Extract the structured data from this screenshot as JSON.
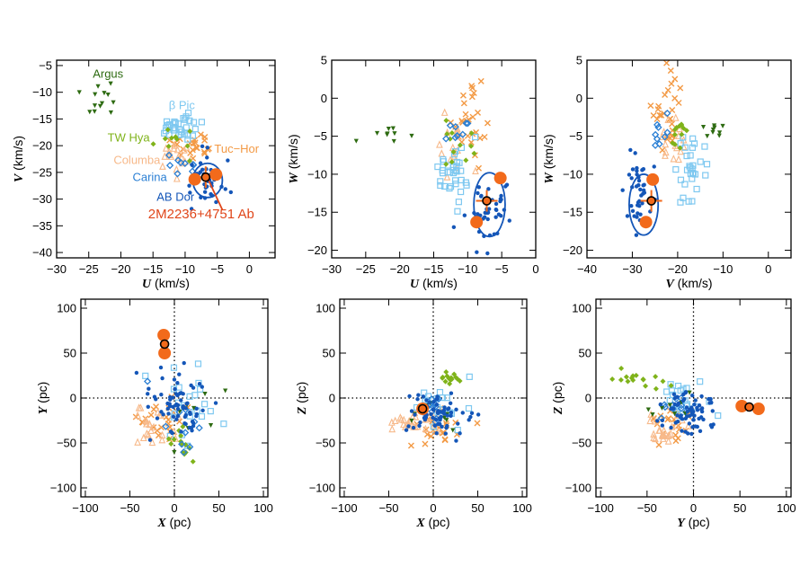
{
  "colors": {
    "argus": "#2e6b12",
    "bpic": "#7ec8f0",
    "twhya": "#7fb31a",
    "columba": "#f7b98a",
    "carina": "#2a7fd4",
    "tuchor": "#f39a45",
    "abdor": "#1456b8",
    "target": "#f26a1b",
    "target_label": "#e0461a"
  },
  "group_labels": {
    "argus": "Argus",
    "bpic": "β Pic",
    "twhya": "TW Hya",
    "columba": "Columba",
    "carina": "Carina",
    "tuchor": "Tuc−Hor",
    "abdor": "AB Dor",
    "target": "2M2236+4751 Ab"
  },
  "chart_data": [
    {
      "type": "scatter",
      "xlabel_var": "U",
      "xlabel_unit": " (km/s)",
      "ylabel_var": "V",
      "ylabel_unit": " (km/s)",
      "xlim": [
        -30,
        4
      ],
      "ylim": [
        -41,
        -4
      ],
      "xticks": [
        -30,
        -25,
        -20,
        -15,
        -10,
        -5,
        0
      ],
      "yticks": [
        -40,
        -35,
        -30,
        -25,
        -20,
        -15,
        -10,
        -5
      ],
      "target": {
        "value": [
          -6.8,
          -25.9
        ],
        "errors": [
          [
            -8.5,
            -26.3
          ],
          [
            -5.2,
            -25.4
          ]
        ]
      },
      "ellipse": {
        "center": [
          -6.5,
          -26.5
        ],
        "radii": [
          2.3,
          3.2
        ]
      },
      "has_labels": true
    },
    {
      "type": "scatter",
      "xlabel_var": "U",
      "xlabel_unit": " (km/s)",
      "ylabel_var": "W",
      "ylabel_unit": " (km/s)",
      "xlim": [
        -30,
        0
      ],
      "ylim": [
        -21,
        5
      ],
      "xticks": [
        -30,
        -25,
        -20,
        -15,
        -10,
        -5,
        0
      ],
      "yticks": [
        -20,
        -15,
        -10,
        -5,
        0,
        5
      ],
      "target": {
        "value": [
          -7.2,
          -13.5
        ],
        "errors": [
          [
            -8.7,
            -16.3
          ],
          [
            -5.2,
            -10.5
          ]
        ]
      },
      "ellipse": {
        "center": [
          -6.8,
          -14.0
        ],
        "radii": [
          2.3,
          4.2
        ]
      }
    },
    {
      "type": "scatter",
      "xlabel_var": "V",
      "xlabel_unit": " (km/s)",
      "ylabel_var": "W",
      "ylabel_unit": " (km/s)",
      "xlim": [
        -40,
        5
      ],
      "ylim": [
        -21,
        5
      ],
      "xticks": [
        -40,
        -30,
        -20,
        -10,
        0
      ],
      "yticks": [
        -20,
        -15,
        -10,
        -5,
        0,
        5
      ],
      "target": {
        "value": [
          -25.8,
          -13.5
        ],
        "errors": [
          [
            -27.0,
            -16.3
          ],
          [
            -25.5,
            -10.7
          ]
        ]
      },
      "ellipse": {
        "center": [
          -27.5,
          -14.0
        ],
        "radii": [
          3.2,
          4.0
        ]
      }
    },
    {
      "type": "scatter",
      "xlabel_var": "X",
      "xlabel_unit": " (pc)",
      "ylabel_var": "Y",
      "ylabel_unit": " (pc)",
      "xlim": [
        -105,
        105
      ],
      "ylim": [
        -110,
        110
      ],
      "xticks": [
        -100,
        -50,
        0,
        50,
        100
      ],
      "yticks": [
        -100,
        -50,
        0,
        50,
        100
      ],
      "zero_lines": true,
      "target": {
        "value": [
          -11,
          60
        ],
        "errors": [
          [
            -12,
            70
          ],
          [
            -11,
            50
          ]
        ]
      }
    },
    {
      "type": "scatter",
      "xlabel_var": "X",
      "xlabel_unit": " (pc)",
      "ylabel_var": "Z",
      "ylabel_unit": " (pc)",
      "xlim": [
        -105,
        105
      ],
      "ylim": [
        -110,
        110
      ],
      "xticks": [
        -100,
        -50,
        0,
        50,
        100
      ],
      "yticks": [
        -100,
        -50,
        0,
        50,
        100
      ],
      "zero_lines": true,
      "target": {
        "value": [
          -12,
          -12
        ],
        "errors": [
          [
            -12,
            -12
          ]
        ]
      }
    },
    {
      "type": "scatter",
      "xlabel_var": "Y",
      "xlabel_unit": " (pc)",
      "ylabel_var": "Z",
      "ylabel_unit": " (pc)",
      "xlim": [
        -105,
        105
      ],
      "ylim": [
        -110,
        110
      ],
      "xticks": [
        -100,
        -50,
        0,
        50,
        100
      ],
      "yticks": [
        -100,
        -50,
        0,
        50,
        100
      ],
      "zero_lines": true,
      "target": {
        "value": [
          60,
          -10
        ],
        "errors": [
          [
            70,
            -12
          ],
          [
            52,
            -9
          ]
        ]
      }
    }
  ]
}
